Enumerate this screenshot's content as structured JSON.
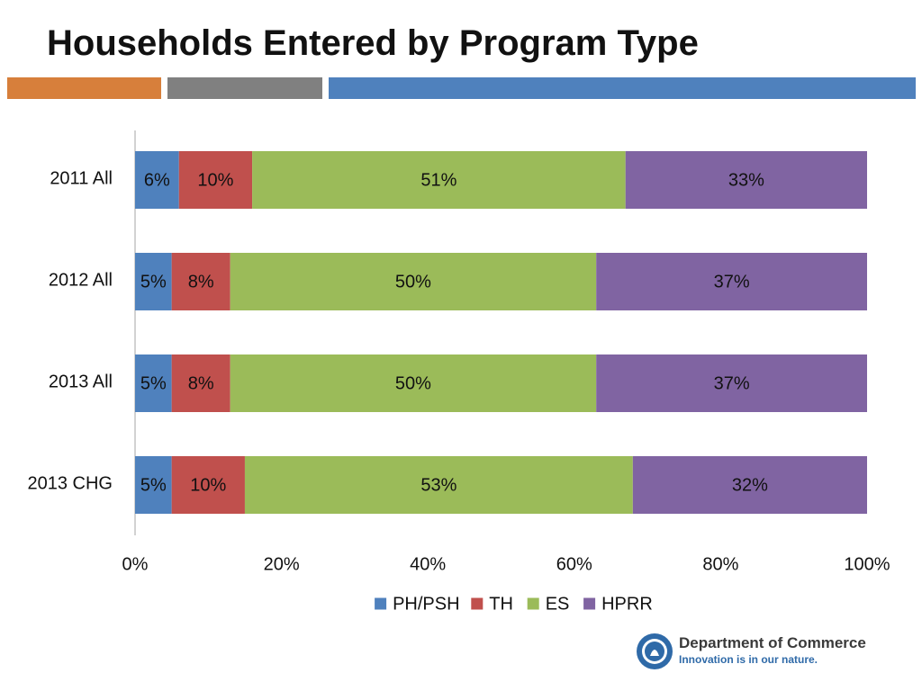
{
  "colors": {
    "accent_orange": "#d77f3b",
    "accent_gray": "#808080",
    "accent_blue": "#4f81bd"
  },
  "chart_data": {
    "type": "bar",
    "orientation": "horizontal",
    "stacked": true,
    "title": "Households Entered by Program Type",
    "categories": [
      "2011 All",
      "2012 All",
      "2013 All",
      "2013 CHG"
    ],
    "series": [
      {
        "name": "PH/PSH",
        "color": "#4f81bd",
        "values": [
          6,
          5,
          5,
          5
        ],
        "labels": [
          "6%",
          "5%",
          "5%",
          "5%"
        ]
      },
      {
        "name": "TH",
        "color": "#c0504d",
        "values": [
          10,
          8,
          8,
          10
        ],
        "labels": [
          "10%",
          "8%",
          "8%",
          "10%"
        ]
      },
      {
        "name": "ES",
        "color": "#9bbb59",
        "values": [
          51,
          50,
          50,
          53
        ],
        "labels": [
          "51%",
          "50%",
          "50%",
          "53%"
        ]
      },
      {
        "name": "HPRR",
        "color": "#8064a2",
        "values": [
          33,
          37,
          37,
          32
        ],
        "labels": [
          "33%",
          "37%",
          "37%",
          "32%"
        ]
      }
    ],
    "xlim": [
      0,
      100
    ],
    "x_ticks": [
      "0%",
      "20%",
      "40%",
      "60%",
      "80%",
      "100%"
    ],
    "grid": false,
    "legend": "bottom"
  },
  "logo": {
    "seal_text": "STATE OF WASHINGTON",
    "name": "Department of Commerce",
    "tagline": "Innovation is in our nature."
  }
}
